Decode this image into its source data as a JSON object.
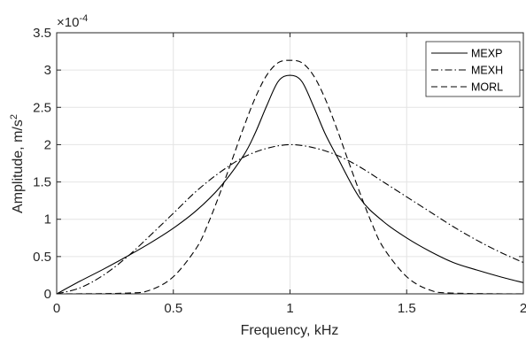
{
  "chart_data": {
    "type": "line",
    "xlabel": "Frequency, kHz",
    "ylabel": "Amplitude, m/s",
    "ylabel_sup": "2",
    "exponent_base": "×10",
    "exponent_power": "-4",
    "xlim": [
      0,
      2
    ],
    "ylim": [
      0,
      3.5
    ],
    "xticks": [
      0,
      0.5,
      1,
      1.5,
      2
    ],
    "xtick_labels": [
      "0",
      "0.5",
      "1",
      "1.5",
      "2"
    ],
    "yticks": [
      0,
      0.5,
      1,
      1.5,
      2,
      2.5,
      3,
      3.5
    ],
    "ytick_labels": [
      "0",
      "0.5",
      "1",
      "1.5",
      "2",
      "2.5",
      "3",
      "3.5"
    ],
    "grid": true,
    "legend_position": "top-right",
    "series": [
      {
        "name": "MEXP",
        "style": "solid",
        "color": "#000000",
        "x": [
          0,
          0.1,
          0.2,
          0.3,
          0.4,
          0.5,
          0.6,
          0.7,
          0.8,
          0.85,
          0.9,
          0.95,
          1.0,
          1.05,
          1.1,
          1.15,
          1.2,
          1.3,
          1.4,
          1.5,
          1.6,
          1.7,
          1.8,
          1.9,
          2.0
        ],
        "y": [
          0,
          0.17,
          0.33,
          0.5,
          0.68,
          0.88,
          1.12,
          1.43,
          1.85,
          2.15,
          2.52,
          2.85,
          2.93,
          2.85,
          2.52,
          2.15,
          1.85,
          1.28,
          0.97,
          0.75,
          0.57,
          0.42,
          0.32,
          0.23,
          0.15
        ]
      },
      {
        "name": "MEXH",
        "style": "dashdot",
        "color": "#000000",
        "x": [
          0,
          0.1,
          0.2,
          0.3,
          0.4,
          0.5,
          0.6,
          0.7,
          0.8,
          0.9,
          1.0,
          1.1,
          1.2,
          1.3,
          1.4,
          1.5,
          1.6,
          1.7,
          1.8,
          1.9,
          2.0
        ],
        "y": [
          0,
          0.08,
          0.25,
          0.49,
          0.78,
          1.08,
          1.38,
          1.63,
          1.83,
          1.95,
          2.0,
          1.96,
          1.86,
          1.7,
          1.5,
          1.3,
          1.1,
          0.9,
          0.72,
          0.56,
          0.42
        ]
      },
      {
        "name": "MORL",
        "style": "dashed",
        "color": "#000000",
        "x": [
          0,
          0.3,
          0.4,
          0.5,
          0.6,
          0.65,
          0.7,
          0.75,
          0.8,
          0.85,
          0.9,
          0.95,
          1.0,
          1.05,
          1.1,
          1.15,
          1.2,
          1.25,
          1.3,
          1.35,
          1.4,
          1.5,
          1.6,
          1.7,
          2.0
        ],
        "y": [
          0,
          0.01,
          0.05,
          0.23,
          0.62,
          0.95,
          1.35,
          1.78,
          2.22,
          2.62,
          2.93,
          3.1,
          3.13,
          3.1,
          2.93,
          2.62,
          2.22,
          1.78,
          1.35,
          0.95,
          0.62,
          0.23,
          0.05,
          0.01,
          0
        ]
      }
    ]
  }
}
